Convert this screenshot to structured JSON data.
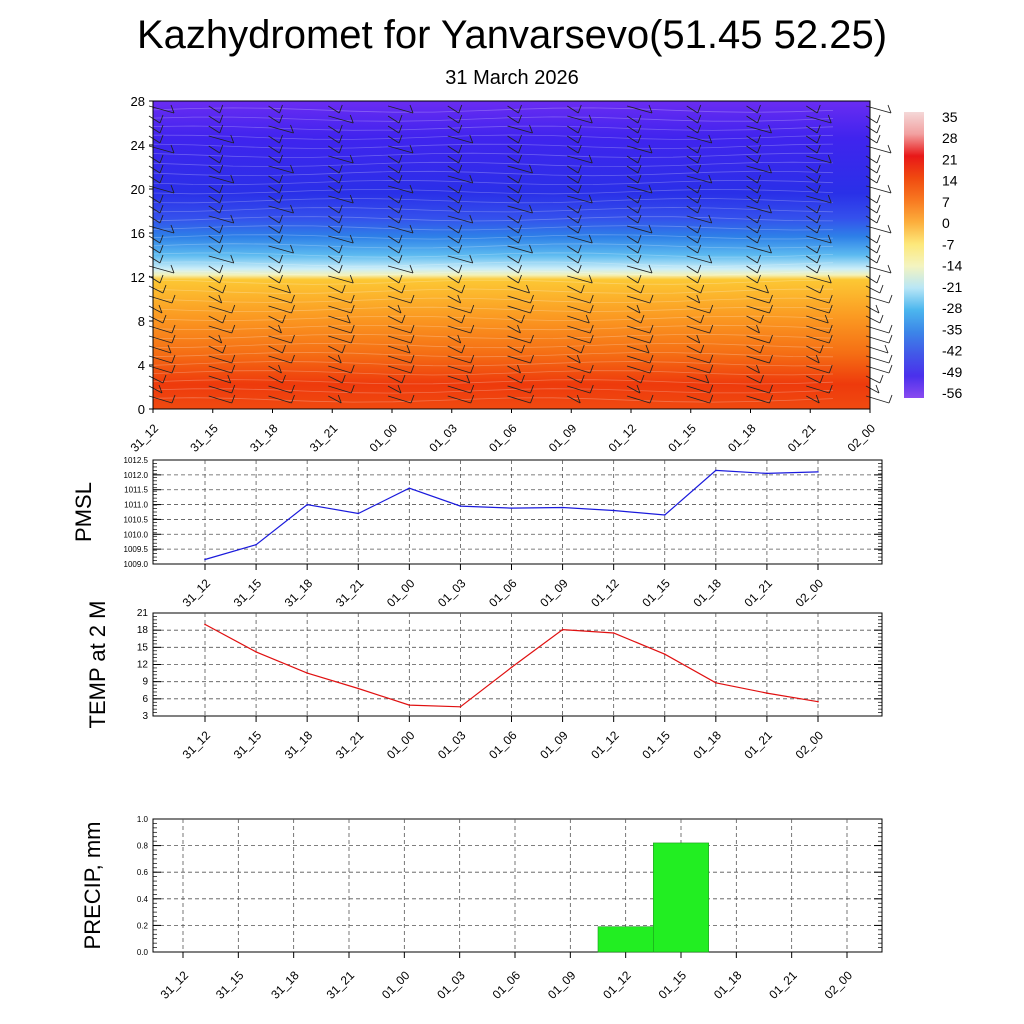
{
  "header": {
    "title": "Kazhydromet for Yanvarsevo(51.45 52.25)",
    "date": "31 March 2026"
  },
  "chart_data": [
    {
      "type": "heatmap",
      "name": "vertical temperature cross-section with wind barbs",
      "x_categories": [
        "31_12",
        "31_15",
        "31_18",
        "31_21",
        "01_00",
        "01_03",
        "01_06",
        "01_09",
        "01_12",
        "01_15",
        "01_18",
        "01_21",
        "02_00"
      ],
      "ylim": [
        0,
        28
      ],
      "yticks": [
        0,
        4,
        8,
        12,
        16,
        20,
        24,
        28
      ],
      "colorbar": {
        "labels": [
          "35",
          "28",
          "21",
          "14",
          "7",
          "0",
          "-7",
          "-14",
          "-21",
          "-28",
          "-35",
          "-42",
          "-49",
          "-56"
        ],
        "colors": [
          "#f4d8d8",
          "#f2a0a0",
          "#e81818",
          "#f04a10",
          "#f87820",
          "#fcae3c",
          "#fde87a",
          "#f4f4c0",
          "#b8e6f6",
          "#4cb6ee",
          "#3c86e8",
          "#4258e8",
          "#4a30ec",
          "#8a4af0"
        ]
      }
    },
    {
      "type": "line",
      "ylabel": "PMSL",
      "categories": [
        "31_12",
        "31_15",
        "31_18",
        "31_21",
        "01_00",
        "01_03",
        "01_06",
        "01_09",
        "01_12",
        "01_15",
        "01_18",
        "01_21",
        "02_00"
      ],
      "values": [
        1009.15,
        1009.65,
        1011.0,
        1010.7,
        1011.55,
        1010.95,
        1010.88,
        1010.9,
        1010.8,
        1010.65,
        1012.15,
        1012.05,
        1012.1
      ],
      "ylim": [
        1009.0,
        1012.5
      ],
      "yticks": [
        "1009.0",
        "1009.5",
        "1010.0",
        "1010.5",
        "1011.0",
        "1011.5",
        "1012.0",
        "1012.5"
      ],
      "color": "#1a1adc"
    },
    {
      "type": "line",
      "ylabel": "TEMP at 2 M",
      "categories": [
        "31_12",
        "31_15",
        "31_18",
        "31_21",
        "01_00",
        "01_03",
        "01_06",
        "01_09",
        "01_12",
        "01_15",
        "01_18",
        "01_21",
        "02_00"
      ],
      "values": [
        19.0,
        14.2,
        10.5,
        7.8,
        4.9,
        4.6,
        11.5,
        18.1,
        17.5,
        13.8,
        8.8,
        7.0,
        5.5
      ],
      "ylim": [
        3,
        21
      ],
      "yticks": [
        "3",
        "6",
        "9",
        "12",
        "15",
        "18",
        "21"
      ],
      "color": "#e01010"
    },
    {
      "type": "bar",
      "ylabel": "PRECIP, mm",
      "categories": [
        "31_12",
        "31_15",
        "31_18",
        "31_21",
        "01_00",
        "01_03",
        "01_06",
        "01_09",
        "01_12",
        "01_15",
        "01_18",
        "01_21",
        "02_00"
      ],
      "values": [
        0,
        0,
        0,
        0,
        0,
        0,
        0,
        0,
        0.19,
        0.82,
        0,
        0,
        0
      ],
      "ylim": [
        0,
        1.0
      ],
      "yticks": [
        "0.0",
        "0.2",
        "0.4",
        "0.6",
        "0.8",
        "1.0"
      ],
      "color": "#22ee22"
    }
  ]
}
